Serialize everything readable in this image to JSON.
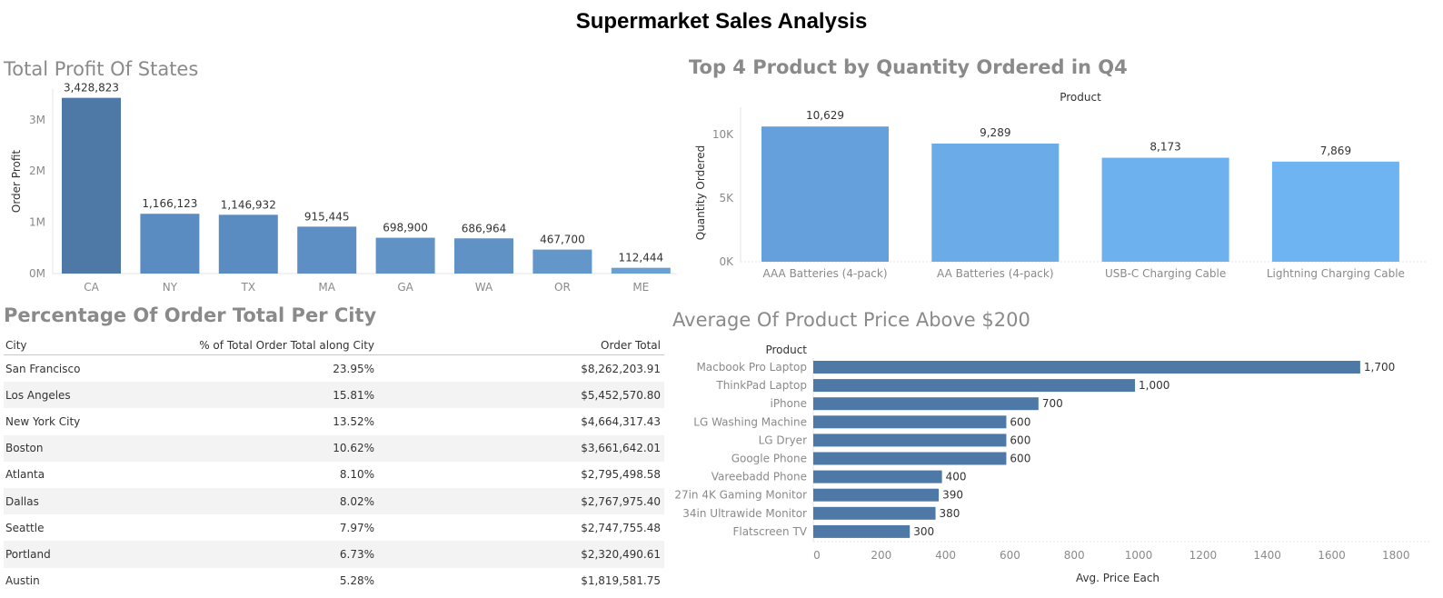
{
  "dashboard": {
    "title": "Supermarket Sales Analysis"
  },
  "chart_data": [
    {
      "type": "bar",
      "title": "Total Profit Of States",
      "ylabel": "Order Profit",
      "xlabel": "",
      "ylim": [
        0,
        3600000
      ],
      "yticks": [
        "0M",
        "1M",
        "2M",
        "3M"
      ],
      "ytick_values": [
        0,
        1000000,
        2000000,
        3000000
      ],
      "categories": [
        "CA",
        "NY",
        "TX",
        "MA",
        "GA",
        "WA",
        "OR",
        "ME"
      ],
      "values": [
        3428823,
        1166123,
        1146932,
        915445,
        698900,
        686964,
        467700,
        112444
      ],
      "labels": [
        "3,428,823",
        "1,166,123",
        "1,146,932",
        "915,445",
        "698,900",
        "686,964",
        "467,700",
        "112,444"
      ],
      "colors": [
        "#4e79a7",
        "#5b8cc1",
        "#5b8cc1",
        "#5e8fc4",
        "#6192c6",
        "#6192c6",
        "#6396c9",
        "#6a9fd4"
      ]
    },
    {
      "type": "bar",
      "title": "Top 4 Product by Quantity Ordered in Q4",
      "header": "Product",
      "ylabel": "Quantity Ordered",
      "xlabel": "",
      "ylim": [
        0,
        12000
      ],
      "yticks": [
        "0K",
        "5K",
        "10K"
      ],
      "ytick_values": [
        0,
        5000,
        10000
      ],
      "categories": [
        "AAA Batteries (4-pack)",
        "AA Batteries (4-pack)",
        "USB-C Charging Cable",
        "Lightning Charging Cable"
      ],
      "values": [
        10629,
        9289,
        8173,
        7869
      ],
      "labels": [
        "10,629",
        "9,289",
        "8,173",
        "7,869"
      ],
      "colors": [
        "#66a0dc",
        "#6aabe8",
        "#6db2ef",
        "#6eb4f2"
      ]
    },
    {
      "type": "table",
      "title": "Percentage Of Order Total Per City",
      "columns": [
        "City",
        "% of Total Order Total along City",
        "Order Total"
      ],
      "rows": [
        [
          "San Francisco",
          "23.95%",
          "$8,262,203.91"
        ],
        [
          "Los Angeles",
          "15.81%",
          "$5,452,570.80"
        ],
        [
          "New York City",
          "13.52%",
          "$4,664,317.43"
        ],
        [
          "Boston",
          "10.62%",
          "$3,661,642.01"
        ],
        [
          "Atlanta",
          "8.10%",
          "$2,795,498.58"
        ],
        [
          "Dallas",
          "8.02%",
          "$2,767,975.40"
        ],
        [
          "Seattle",
          "7.97%",
          "$2,747,755.48"
        ],
        [
          "Portland",
          "6.73%",
          "$2,320,490.61"
        ],
        [
          "Austin",
          "5.28%",
          "$1,819,581.75"
        ]
      ]
    },
    {
      "type": "bar",
      "orientation": "horizontal",
      "title": "Average Of Product Price Above $200",
      "header": "Product",
      "xlabel": "Avg. Price Each",
      "ylabel": "",
      "xlim": [
        0,
        1850
      ],
      "xticks": [
        0,
        200,
        400,
        600,
        800,
        1000,
        1200,
        1400,
        1600,
        1800
      ],
      "categories": [
        "Macbook Pro Laptop",
        "ThinkPad Laptop",
        "iPhone",
        "LG Washing Machine",
        "LG Dryer",
        "Google Phone",
        "Vareebadd Phone",
        "27in 4K Gaming Monitor",
        "34in Ultrawide Monitor",
        "Flatscreen TV"
      ],
      "values": [
        1700,
        1000,
        700,
        600,
        600,
        600,
        400,
        390,
        380,
        300
      ],
      "labels": [
        "1,700",
        "1,000",
        "700",
        "600",
        "600",
        "600",
        "400",
        "390",
        "380",
        "300"
      ],
      "color": "#4e79a7"
    }
  ]
}
